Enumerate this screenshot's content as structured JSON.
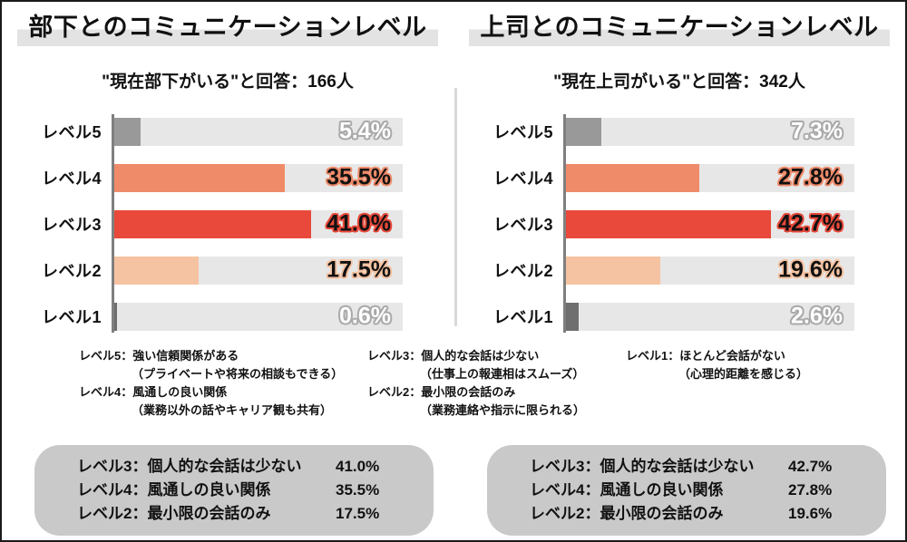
{
  "colors": {
    "level5_bar": "#999999",
    "level4_bar": "#EF8B69",
    "level3_bar": "#E8493A",
    "level2_bar": "#F6C3A2",
    "level1_bar": "#6F6F6F",
    "bar_track": "#E7E7E7",
    "axis_line": "#7F7F7F",
    "panel_divider": "#D8D8D8",
    "title_highlight": "#E3E3E3",
    "summary_box": "#C9C9C9",
    "page_border": "#1A1A1A"
  },
  "scale_max": 60,
  "panels": [
    {
      "title": "部下とのコミュニケーションレベル",
      "subtitle": "\"現在部下がいる\"と回答：166人",
      "bars": [
        {
          "label": "レベル5",
          "value": 5.4,
          "display": "5.4%",
          "color": "#999999",
          "text_fill": "#FFFFFF",
          "text_outline": "#A9A9A9"
        },
        {
          "label": "レベル4",
          "value": 35.5,
          "display": "35.5%",
          "color": "#EF8B69",
          "text_fill": "#111111",
          "text_outline": "#EF8B69"
        },
        {
          "label": "レベル3",
          "value": 41.0,
          "display": "41.0%",
          "color": "#E8493A",
          "text_fill": "#111111",
          "text_outline": "#E8493A"
        },
        {
          "label": "レベル2",
          "value": 17.5,
          "display": "17.5%",
          "color": "#F6C3A2",
          "text_fill": "#111111",
          "text_outline": "#F6C3A2"
        },
        {
          "label": "レベル1",
          "value": 0.6,
          "display": "0.6%",
          "color": "#6F6F6F",
          "text_fill": "#FFFFFF",
          "text_outline": "#A9A9A9"
        }
      ],
      "summary": [
        {
          "label": "レベル3：個人的な会話は少ない",
          "value": "41.0%"
        },
        {
          "label": "レベル4：風通しの良い関係",
          "value": "35.5%"
        },
        {
          "label": "レベル2：最小限の会話のみ",
          "value": "17.5%"
        }
      ]
    },
    {
      "title": "上司とのコミュニケーションレベル",
      "subtitle": "\"現在上司がいる\"と回答：342人",
      "bars": [
        {
          "label": "レベル5",
          "value": 7.3,
          "display": "7.3%",
          "color": "#999999",
          "text_fill": "#FFFFFF",
          "text_outline": "#A9A9A9"
        },
        {
          "label": "レベル4",
          "value": 27.8,
          "display": "27.8%",
          "color": "#EF8B69",
          "text_fill": "#111111",
          "text_outline": "#EF8B69"
        },
        {
          "label": "レベル3",
          "value": 42.7,
          "display": "42.7%",
          "color": "#E8493A",
          "text_fill": "#111111",
          "text_outline": "#E8493A"
        },
        {
          "label": "レベル2",
          "value": 19.6,
          "display": "19.6%",
          "color": "#F6C3A2",
          "text_fill": "#111111",
          "text_outline": "#F6C3A2"
        },
        {
          "label": "レベル1",
          "value": 2.6,
          "display": "2.6%",
          "color": "#6F6F6F",
          "text_fill": "#FFFFFF",
          "text_outline": "#A9A9A9"
        }
      ],
      "summary": [
        {
          "label": "レベル3：個人的な会話は少ない",
          "value": "42.7%"
        },
        {
          "label": "レベル4：風通しの良い関係",
          "value": "27.8%"
        },
        {
          "label": "レベル2：最小限の会話のみ",
          "value": "19.6%"
        }
      ]
    }
  ],
  "footnotes": [
    {
      "lines": [
        {
          "text": "レベル5：強い信頼関係がある"
        },
        {
          "text": "（プライベートや将来の相談もできる）"
        },
        {
          "text": "レベル4：風通しの良い関係"
        },
        {
          "text": "（業務以外の話やキャリア観も共有）"
        }
      ]
    },
    {
      "lines": [
        {
          "text": "レベル3：個人的な会話は少ない"
        },
        {
          "text": "（仕事上の報連相はスムーズ）"
        },
        {
          "text": "レベル2：最小限の会話のみ"
        },
        {
          "text": "（業務連絡や指示に限られる）"
        }
      ]
    },
    {
      "lines": [
        {
          "text": "レベル1：ほとんど会話がない"
        },
        {
          "text": "（心理的距離を感じる）"
        }
      ]
    }
  ],
  "chart_data": [
    {
      "type": "bar",
      "orientation": "horizontal",
      "title": "部下とのコミュニケーションレベル",
      "subtitle": "\"現在部下がいる\"と回答：166人",
      "respondents": 166,
      "categories": [
        "レベル5",
        "レベル4",
        "レベル3",
        "レベル2",
        "レベル1"
      ],
      "values": [
        5.4,
        35.5,
        41.0,
        17.5,
        0.6
      ],
      "unit": "%",
      "xlim": [
        0,
        60
      ],
      "grid": false,
      "legend": "none",
      "bar_colors": [
        "#999999",
        "#EF8B69",
        "#E8493A",
        "#F6C3A2",
        "#6F6F6F"
      ]
    },
    {
      "type": "bar",
      "orientation": "horizontal",
      "title": "上司とのコミュニケーションレベル",
      "subtitle": "\"現在上司がいる\"と回答：342人",
      "respondents": 342,
      "categories": [
        "レベル5",
        "レベル4",
        "レベル3",
        "レベル2",
        "レベル1"
      ],
      "values": [
        7.3,
        27.8,
        42.7,
        19.6,
        2.6
      ],
      "unit": "%",
      "xlim": [
        0,
        60
      ],
      "grid": false,
      "legend": "none",
      "bar_colors": [
        "#999999",
        "#EF8B69",
        "#E8493A",
        "#F6C3A2",
        "#6F6F6F"
      ]
    }
  ]
}
